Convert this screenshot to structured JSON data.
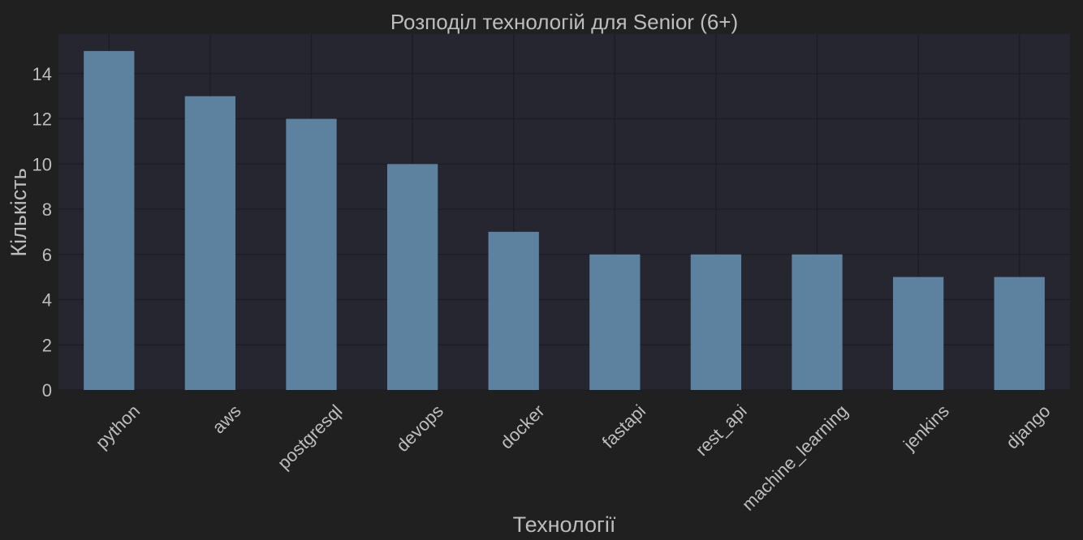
{
  "colors": {
    "figure_background": "#202020",
    "plot_background": "#262630",
    "grid": "#1c1c22",
    "bar": "#5c829f",
    "text": "#bdbdbd"
  },
  "chart_data": {
    "type": "bar",
    "title": "Розподіл технологій для Senior (6+)",
    "xlabel": "Технології",
    "ylabel": "Кількість",
    "categories": [
      "python",
      "aws",
      "postgresql",
      "devops",
      "docker",
      "fastapi",
      "rest_api",
      "machine_learning",
      "jenkins",
      "django"
    ],
    "values": [
      15,
      13,
      12,
      10,
      7,
      6,
      6,
      6,
      5,
      5
    ],
    "ylim": [
      0,
      15.75
    ],
    "yticks": [
      0,
      2,
      4,
      6,
      8,
      10,
      12,
      14
    ],
    "xtick_rotation": -45,
    "grid": true,
    "legend": "none"
  }
}
